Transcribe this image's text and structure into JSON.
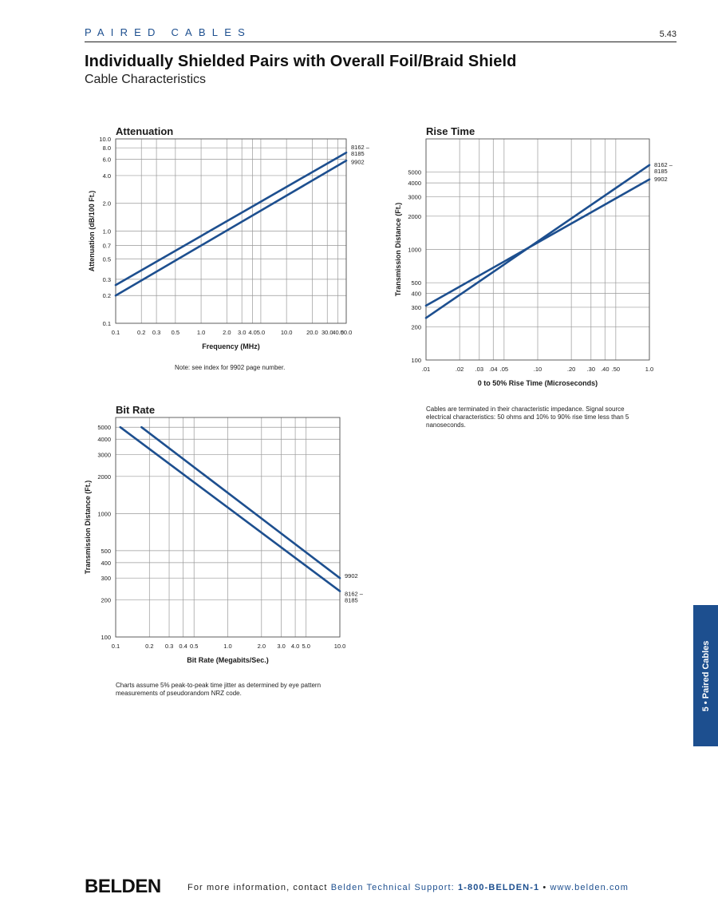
{
  "header": {
    "section": "PAIRED CABLES",
    "page_number": "5.43",
    "title": "Individually Shielded Pairs with Overall Foil/Braid Shield",
    "subtitle": "Cable Characteristics"
  },
  "colors": {
    "accent": "#1d4f8f",
    "line": "#1d4f8f",
    "grid": "#999999"
  },
  "chart_data": [
    {
      "id": "attenuation",
      "type": "line",
      "title": "Attenuation",
      "xlabel": "Frequency (MHz)",
      "ylabel": "Attenuation (dB/100 Ft.)",
      "xscale": "log",
      "yscale": "log",
      "xlim": [
        0.1,
        50
      ],
      "ylim": [
        0.1,
        10
      ],
      "xticks": [
        0.1,
        0.2,
        0.3,
        0.5,
        1,
        2,
        3,
        4,
        5,
        10,
        20,
        30,
        40,
        50
      ],
      "xtick_labels": [
        "0.1",
        "0.2",
        "0.3",
        "0.5",
        "1.0",
        "2.0",
        "3.0",
        "4.0",
        "5.0",
        "10.0",
        "20.0",
        "30.0",
        "40.0",
        "50.0"
      ],
      "yticks": [
        0.1,
        0.2,
        0.3,
        0.5,
        0.7,
        1,
        2,
        4,
        6,
        8,
        10
      ],
      "ytick_labels": [
        "0.1",
        "0.2",
        "0.3",
        "0.5",
        "0.7",
        "1.0",
        "2.0",
        "4.0",
        "6.0",
        "8.0",
        "10.0"
      ],
      "grid": true,
      "series": [
        {
          "label_lines": [
            "8162 –",
            "8185"
          ],
          "x": [
            0.1,
            50
          ],
          "y": [
            0.26,
            7.1
          ]
        },
        {
          "label_lines": [
            "9902"
          ],
          "x": [
            0.1,
            50
          ],
          "y": [
            0.2,
            5.8
          ]
        }
      ],
      "note": "Note: see index for 9902 page number."
    },
    {
      "id": "rise-time",
      "type": "line",
      "title": "Rise Time",
      "xlabel": "0 to 50% Rise Time (Microseconds)",
      "ylabel": "Transmission Distance (Ft.)",
      "xscale": "log",
      "yscale": "log",
      "xlim": [
        0.01,
        1.0
      ],
      "ylim": [
        100,
        10000
      ],
      "xticks": [
        0.01,
        0.02,
        0.03,
        0.04,
        0.05,
        0.1,
        0.2,
        0.3,
        0.4,
        0.5,
        1.0
      ],
      "xtick_labels": [
        ".01",
        ".02",
        ".03",
        ".04",
        ".05",
        ".10",
        ".20",
        ".30",
        ".40",
        ".50",
        "1.0"
      ],
      "yticks": [
        100,
        200,
        300,
        400,
        500,
        1000,
        2000,
        3000,
        4000,
        5000
      ],
      "ytick_labels": [
        "100",
        "200",
        "300",
        "400",
        "500",
        "1000",
        "2000",
        "3000",
        "4000",
        "5000"
      ],
      "grid": true,
      "series": [
        {
          "label_lines": [
            "8162 –",
            "8185"
          ],
          "x": [
            0.01,
            1.0
          ],
          "y": [
            240,
            5800
          ]
        },
        {
          "label_lines": [
            "9902"
          ],
          "x": [
            0.01,
            1.0
          ],
          "y": [
            310,
            4300
          ]
        }
      ],
      "note": "Cables are terminated in their characteristic impedance. Signal source electrical characteristics: 50 ohms and 10% to 90% rise time less than 5 nanoseconds."
    },
    {
      "id": "bit-rate",
      "type": "line",
      "title": "Bit Rate",
      "xlabel": "Bit Rate (Megabits/Sec.)",
      "ylabel": "Transmission Distance (Ft.)",
      "xscale": "log",
      "yscale": "log",
      "xlim": [
        0.1,
        10
      ],
      "ylim": [
        100,
        6000
      ],
      "xticks": [
        0.1,
        0.2,
        0.3,
        0.4,
        0.5,
        1,
        2,
        3,
        4,
        5,
        10
      ],
      "xtick_labels": [
        "0.1",
        "0.2",
        "0.3",
        "0.4",
        "0.5",
        "1.0",
        "2.0",
        "3.0",
        "4.0",
        "5.0",
        "10.0"
      ],
      "yticks": [
        100,
        200,
        300,
        400,
        500,
        1000,
        2000,
        3000,
        4000,
        5000
      ],
      "ytick_labels": [
        "100",
        "200",
        "300",
        "400",
        "500",
        "1000",
        "2000",
        "3000",
        "4000",
        "5000"
      ],
      "grid": true,
      "series": [
        {
          "label_lines": [
            "9902"
          ],
          "x": [
            0.17,
            10
          ],
          "y": [
            5000,
            300
          ]
        },
        {
          "label_lines": [
            "8162 –",
            "8185"
          ],
          "x": [
            0.11,
            10
          ],
          "y": [
            5000,
            235
          ]
        }
      ],
      "note": "Charts assume 5% peak-to-peak time jitter as determined by eye pattern measurements of pseudorandom NRZ code."
    }
  ],
  "side_tab": {
    "label": "5 • Paired Cables"
  },
  "footer": {
    "logo": "BELDEN",
    "prefix": "For more information, contact ",
    "contact": "Belden Technical Support: ",
    "phone": "1-800-BELDEN-1",
    "separator": " • ",
    "website": "www.belden.com"
  }
}
